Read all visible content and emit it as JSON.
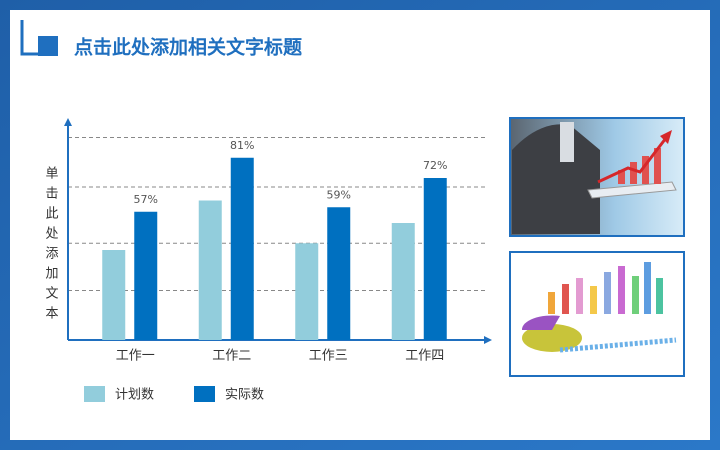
{
  "header": {
    "title": "点击此处添加相关文字标题"
  },
  "chart_data": {
    "type": "bar",
    "y_label": "单击此处添加文本",
    "categories": [
      "工作一",
      "工作二",
      "工作三",
      "工作四"
    ],
    "series": [
      {
        "name": "计划数",
        "color": "#92cddc",
        "values": [
          40,
          62,
          43,
          52
        ]
      },
      {
        "name": "实际数",
        "color": "#0070c0",
        "values": [
          57,
          81,
          59,
          72
        ],
        "value_labels": [
          "57%",
          "81%",
          "59%",
          "72%"
        ]
      }
    ],
    "ylim": [
      0,
      100
    ],
    "grid": true
  }
}
